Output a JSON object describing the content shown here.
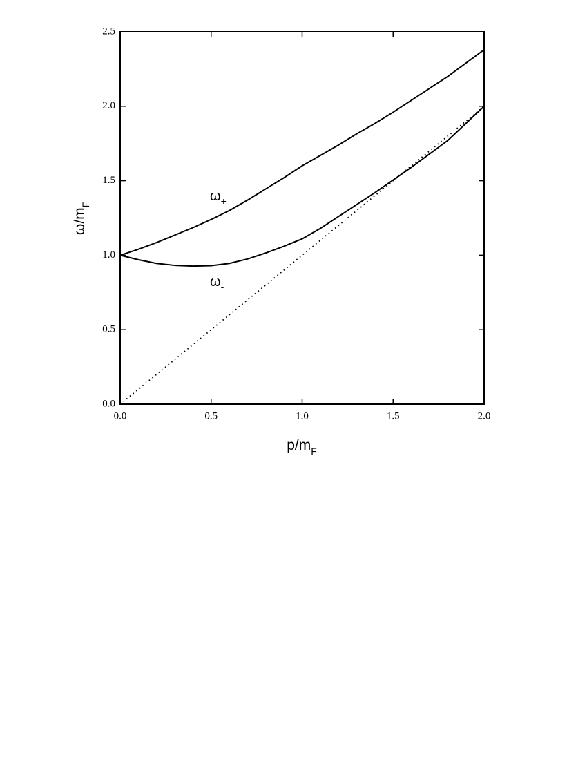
{
  "chart_data": {
    "type": "line",
    "x_label": {
      "text": "p/m",
      "sub": "F"
    },
    "y_label": {
      "text": "ω/m",
      "sub": "F"
    },
    "annotations": [
      {
        "text": "ω",
        "sub": "+"
      },
      {
        "text": "ω",
        "sub": "-"
      }
    ],
    "xlim": [
      0,
      2
    ],
    "ylim": [
      0,
      2.5
    ],
    "xticks": [
      {
        "value": 0,
        "label": "0.0"
      },
      0.5,
      {
        "value": 1,
        "label": "1.0"
      },
      1.5,
      {
        "value": 2,
        "label": "2.0"
      }
    ],
    "yticks": [
      {
        "value": 0,
        "label": "0.0"
      },
      0.5,
      {
        "value": 1,
        "label": "1.0"
      },
      1.5,
      {
        "value": 2,
        "label": "2.0"
      },
      2.5
    ],
    "series": [
      {
        "color": "#000000",
        "style": "solid",
        "x": [
          0,
          0.1,
          0.2,
          0.3,
          0.4,
          0.5,
          0.6,
          0.7,
          0.8,
          0.9,
          1.0,
          1.1,
          1.2,
          1.3,
          1.4,
          1.5,
          1.6,
          1.7,
          1.8,
          1.9,
          2.0
        ],
        "values": [
          1.0,
          1.04,
          1.085,
          1.135,
          1.185,
          1.24,
          1.3,
          1.37,
          1.445,
          1.52,
          1.6,
          1.67,
          1.74,
          1.815,
          1.885,
          1.96,
          2.04,
          2.12,
          2.2,
          2.29,
          2.38
        ]
      },
      {
        "color": "#000000",
        "style": "solid",
        "x": [
          0,
          0.1,
          0.2,
          0.3,
          0.4,
          0.5,
          0.6,
          0.7,
          0.8,
          0.9,
          1.0,
          1.1,
          1.2,
          1.3,
          1.4,
          1.5,
          1.6,
          1.7,
          1.8,
          1.9,
          2.0
        ],
        "values": [
          1.0,
          0.97,
          0.945,
          0.932,
          0.927,
          0.93,
          0.945,
          0.975,
          1.015,
          1.06,
          1.11,
          1.18,
          1.26,
          1.34,
          1.42,
          1.505,
          1.59,
          1.68,
          1.77,
          1.885,
          2.0
        ]
      },
      {
        "color": "#000000",
        "style": "dotted",
        "x": [
          0,
          2
        ],
        "values": [
          0,
          2
        ]
      }
    ]
  }
}
